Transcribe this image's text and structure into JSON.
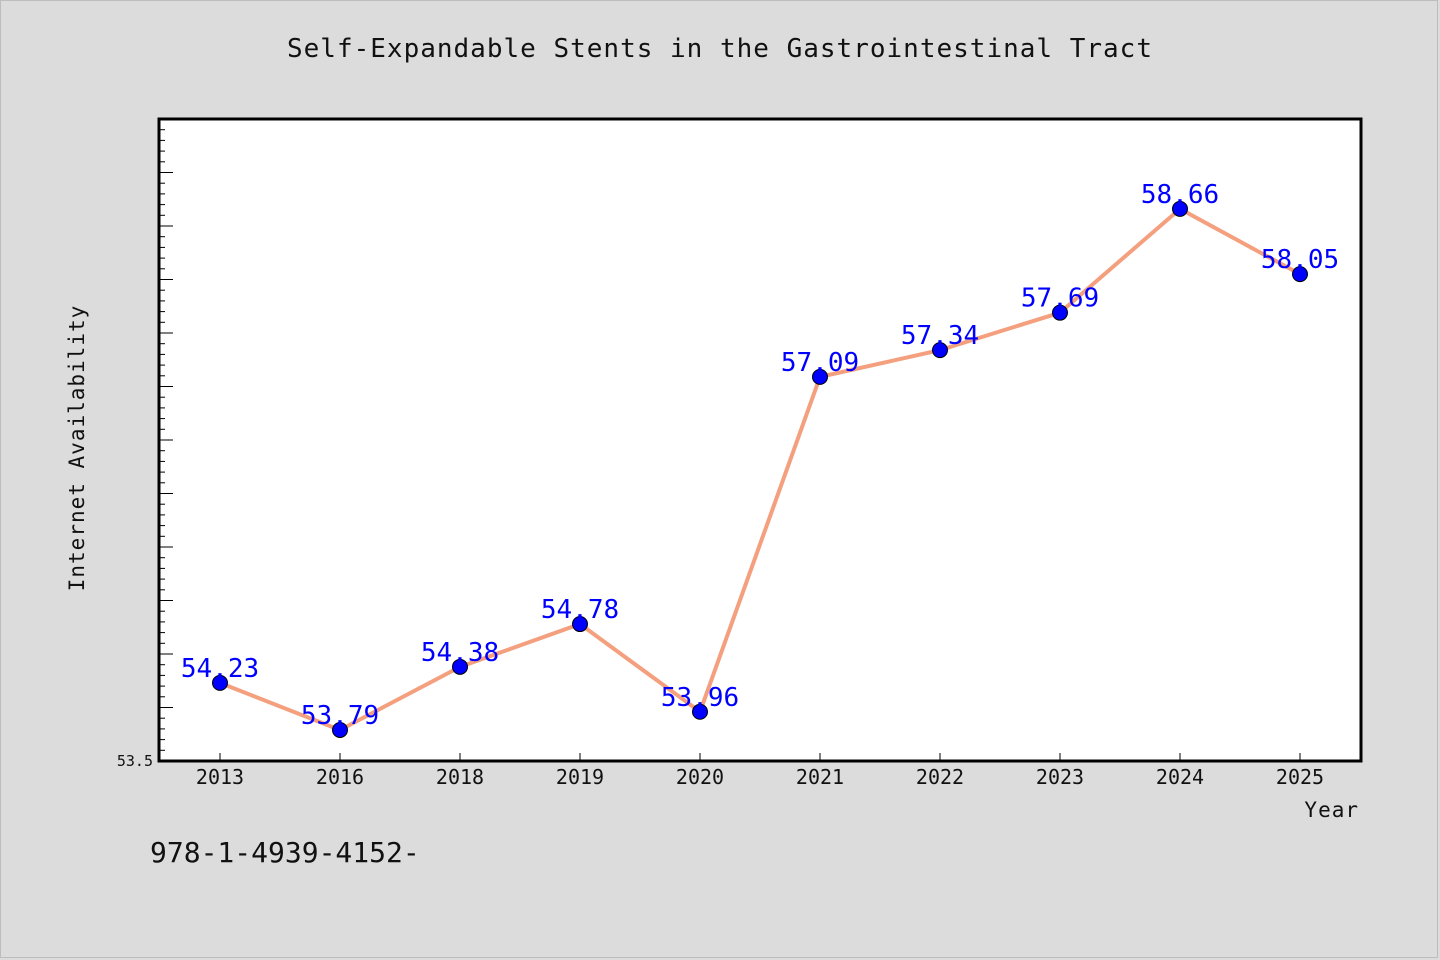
{
  "chart_data": {
    "type": "line",
    "title": "Self-Expandable Stents in the Gastrointestinal Tract",
    "xlabel": "Year",
    "ylabel": "Internet Availability",
    "categories": [
      "2013",
      "2016",
      "2018",
      "2019",
      "2020",
      "2021",
      "2022",
      "2023",
      "2024",
      "2025"
    ],
    "series": [
      {
        "values": [
          54.23,
          53.79,
          54.38,
          54.78,
          53.96,
          57.09,
          57.34,
          57.69,
          58.66,
          58.05
        ],
        "data_labels": [
          "54.23",
          "53.79",
          "54.38",
          "54.78",
          "53.96",
          "57.09",
          "57.34",
          "57.69",
          "58.66",
          "58.05"
        ]
      }
    ],
    "ylim": [
      53.5,
      59.5
    ],
    "y_tick_labels": [
      "53.5"
    ],
    "grid": false,
    "colors": {
      "line": "#f4a07f",
      "marker": "#0000ff",
      "label": "#0000ff",
      "background": "#dcdcdc",
      "plot_background": "#ffffff"
    }
  },
  "caption": "978-1-4939-4152-"
}
